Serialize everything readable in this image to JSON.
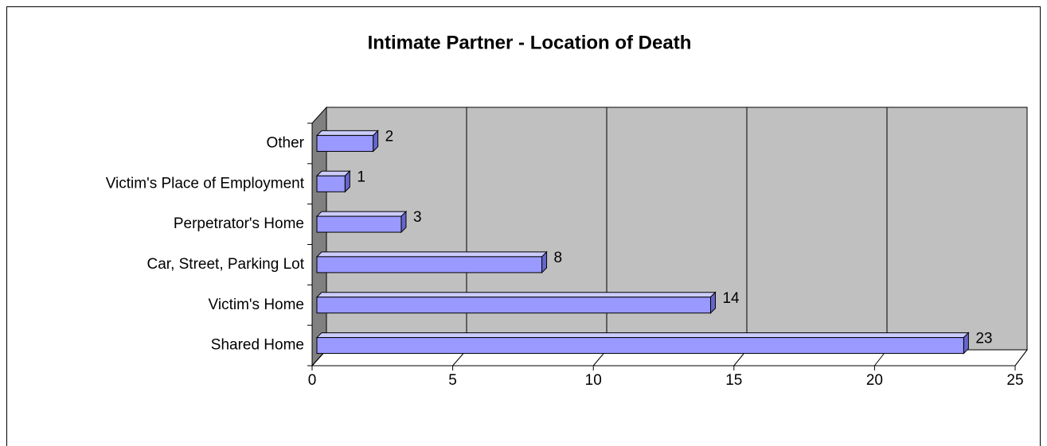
{
  "chart_data": {
    "type": "bar",
    "orientation": "horizontal",
    "title": "Intimate Partner - Location of Death",
    "categories": [
      "Shared Home",
      "Victim's Home",
      "Car, Street, Parking Lot",
      "Perpetrator's Home",
      "Victim's Place of Employment",
      "Other"
    ],
    "values": [
      23,
      14,
      8,
      3,
      1,
      2
    ],
    "color": "#9999ff",
    "xlim": [
      0,
      25
    ],
    "xticks": [
      0,
      5,
      10,
      15,
      20,
      25
    ],
    "grid": true
  }
}
